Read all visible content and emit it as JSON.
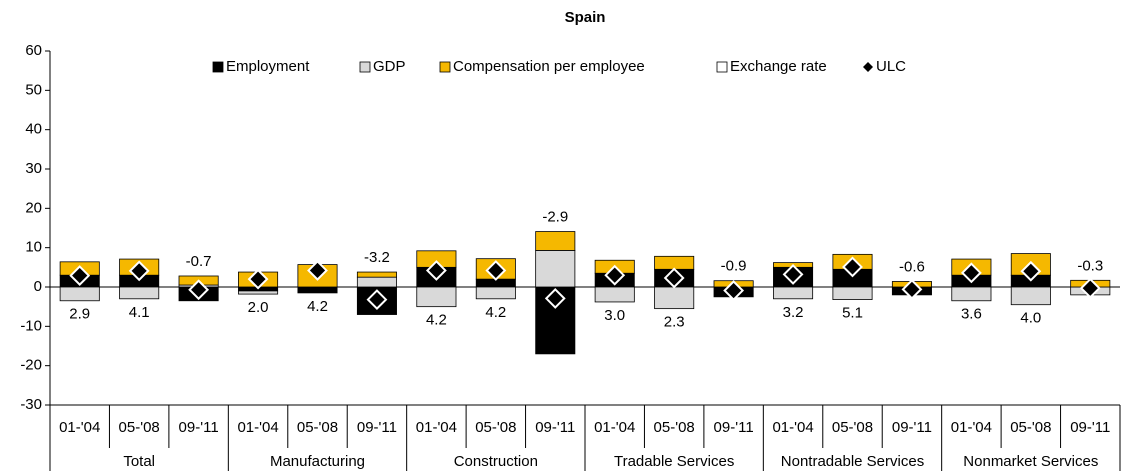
{
  "chart_data": {
    "type": "bar",
    "stacked": true,
    "title": "Spain",
    "categories": [
      "01-'04",
      "05-'08",
      "09-'11",
      "01-'04",
      "05-'08",
      "09-'11",
      "01-'04",
      "05-'08",
      "09-'11",
      "01-'04",
      "05-'08",
      "09-'11",
      "01-'04",
      "05-'08",
      "09-'11",
      "01-'04",
      "05-'08",
      "09-'11"
    ],
    "groups": [
      "Total",
      "Manufacturing",
      "Construction",
      "Tradable Services",
      "Nontradable Services",
      "Nonmarket Services"
    ],
    "series": [
      {
        "name": "Employment",
        "color": "#000000",
        "values": [
          3,
          3,
          -3.5,
          -1,
          -1.5,
          -7,
          5,
          2,
          -17,
          3.5,
          4.5,
          -2.5,
          5,
          4.5,
          -2,
          3,
          3,
          0
        ]
      },
      {
        "name": "GDP",
        "color": "#d9d9d9",
        "values": [
          -3.5,
          -3,
          0.5,
          -0.8,
          0,
          2.5,
          -5,
          -3,
          9.3,
          -3.8,
          -5.5,
          0,
          -3,
          -3.2,
          0,
          -3.5,
          -4.5,
          -2
        ]
      },
      {
        "name": "Compensation per employee",
        "color": "#f5b800",
        "values": [
          3.4,
          4.1,
          2.3,
          3.8,
          5.7,
          1.3,
          4.2,
          5.2,
          4.8,
          3.3,
          3.3,
          1.6,
          1.2,
          3.8,
          1.4,
          4.1,
          5.5,
          1.7
        ]
      },
      {
        "name": "Exchange rate",
        "color": "#ffffff",
        "values": [
          0,
          0,
          0,
          0,
          0,
          0,
          0,
          0,
          0,
          0,
          0,
          0,
          0,
          0,
          0,
          0,
          0,
          0
        ]
      },
      {
        "name": "ULC",
        "type": "scatter",
        "marker": "diamond",
        "color": "#000000",
        "values": [
          2.9,
          4.1,
          -0.7,
          2.0,
          4.2,
          -3.2,
          4.2,
          4.2,
          -2.9,
          3.0,
          2.3,
          -0.9,
          3.2,
          5.1,
          -0.6,
          3.6,
          4.0,
          -0.3
        ],
        "value_labels": [
          "2.9",
          "4.1",
          "-0.7",
          "2.0",
          "4.2",
          "-3.2",
          "4.2",
          "4.2",
          "-2.9",
          "3.0",
          "2.3",
          "-0.9",
          "3.2",
          "5.1",
          "-0.6",
          "3.6",
          "4.0",
          "-0.3"
        ]
      }
    ],
    "ylim": [
      -30,
      60
    ],
    "yticks": [
      -30,
      -20,
      -10,
      0,
      10,
      20,
      30,
      40,
      50,
      60
    ],
    "grid": false,
    "legend": "top"
  }
}
